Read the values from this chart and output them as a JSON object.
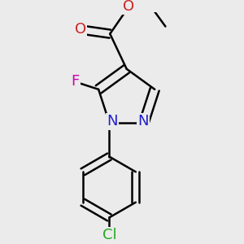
{
  "background_color": "#ebebeb",
  "atom_colors": {
    "N": "#2020cc",
    "O": "#cc2020",
    "F": "#cc00aa",
    "Cl": "#20aa20"
  },
  "bond_color": "#000000",
  "bond_width": 1.8,
  "dbo": 0.05,
  "font_size": 13,
  "figsize": [
    3.0,
    3.0
  ],
  "dpi": 100
}
